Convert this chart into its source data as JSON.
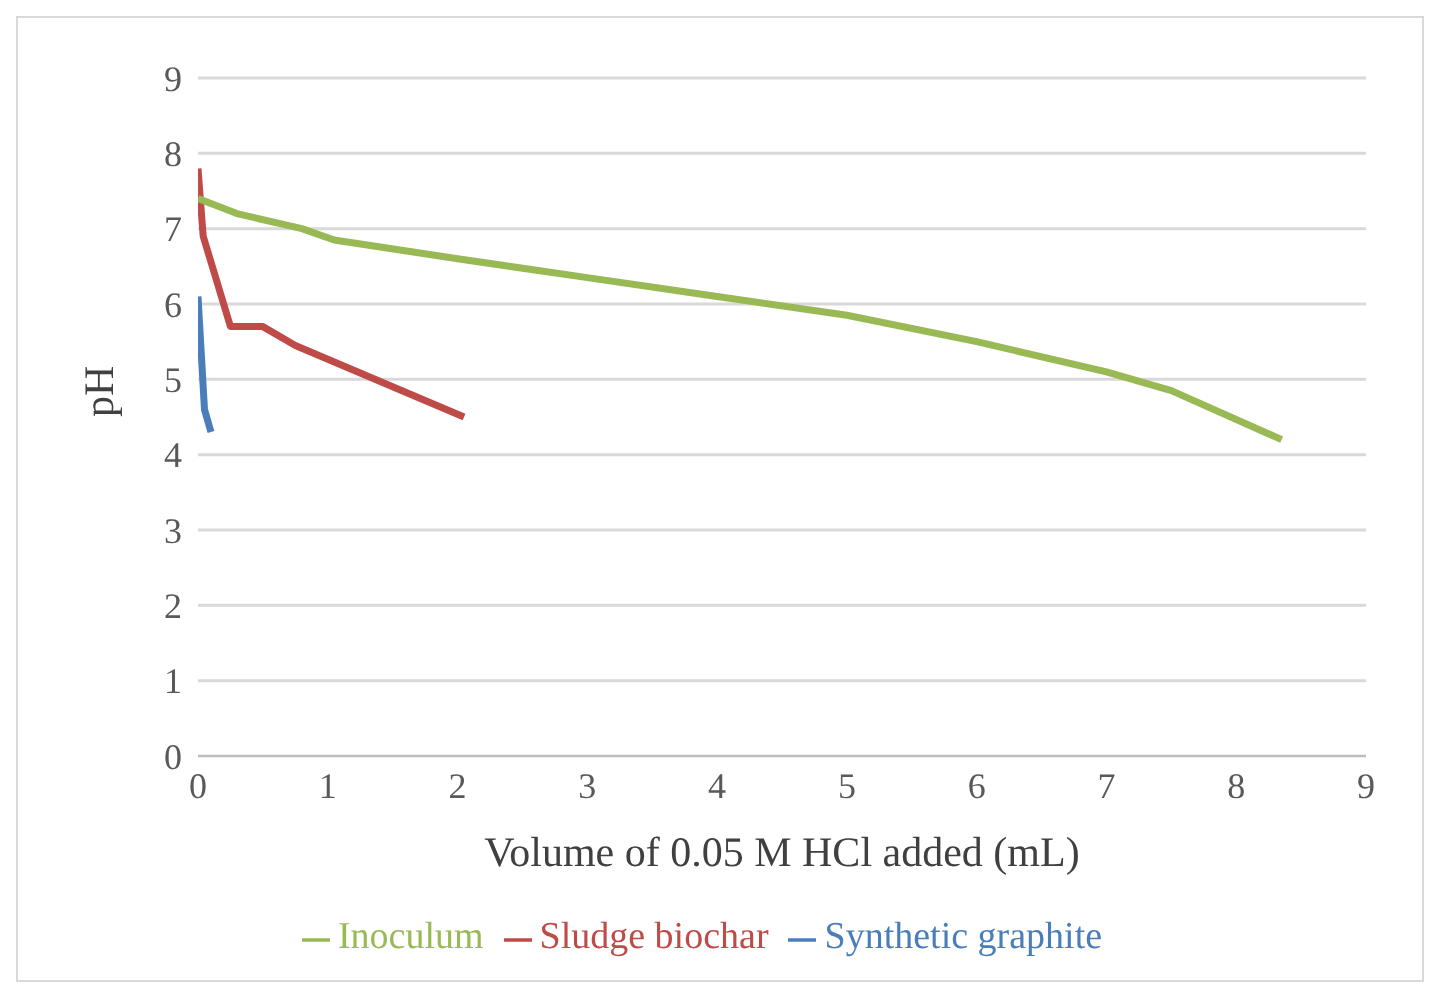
{
  "chart_data": {
    "type": "line",
    "xlabel": "Volume of 0.05 M HCl added (mL)",
    "ylabel": "pH",
    "xlim": [
      0,
      9
    ],
    "xticks": [
      0,
      1,
      2,
      3,
      4,
      5,
      6,
      7,
      8,
      9
    ],
    "ylim": [
      0,
      9
    ],
    "yticks": [
      0,
      1,
      2,
      3,
      4,
      5,
      6,
      7,
      8,
      9
    ],
    "grid": "y",
    "legend": "bottom",
    "marker": "none",
    "series": [
      {
        "name": "Synthetic graphite",
        "color": "#4a7ebb",
        "x": [
          0,
          0.05,
          0.1
        ],
        "values": [
          6.1,
          4.6,
          4.3
        ]
      },
      {
        "name": "Sludge biochar",
        "color": "#be4b48",
        "x": [
          0,
          0.04,
          0.25,
          0.5,
          0.75,
          2.05
        ],
        "values": [
          7.8,
          6.9,
          5.7,
          5.7,
          5.45,
          4.5
        ]
      },
      {
        "name": "Inoculum",
        "color": "#98b954",
        "x": [
          0,
          0.3,
          0.8,
          1.05,
          2,
          3,
          4,
          5,
          6,
          7,
          7.5,
          8.35
        ],
        "values": [
          7.4,
          7.2,
          7.0,
          6.85,
          6.6,
          6.35,
          6.1,
          5.85,
          5.5,
          5.1,
          4.85,
          4.2
        ]
      }
    ]
  }
}
